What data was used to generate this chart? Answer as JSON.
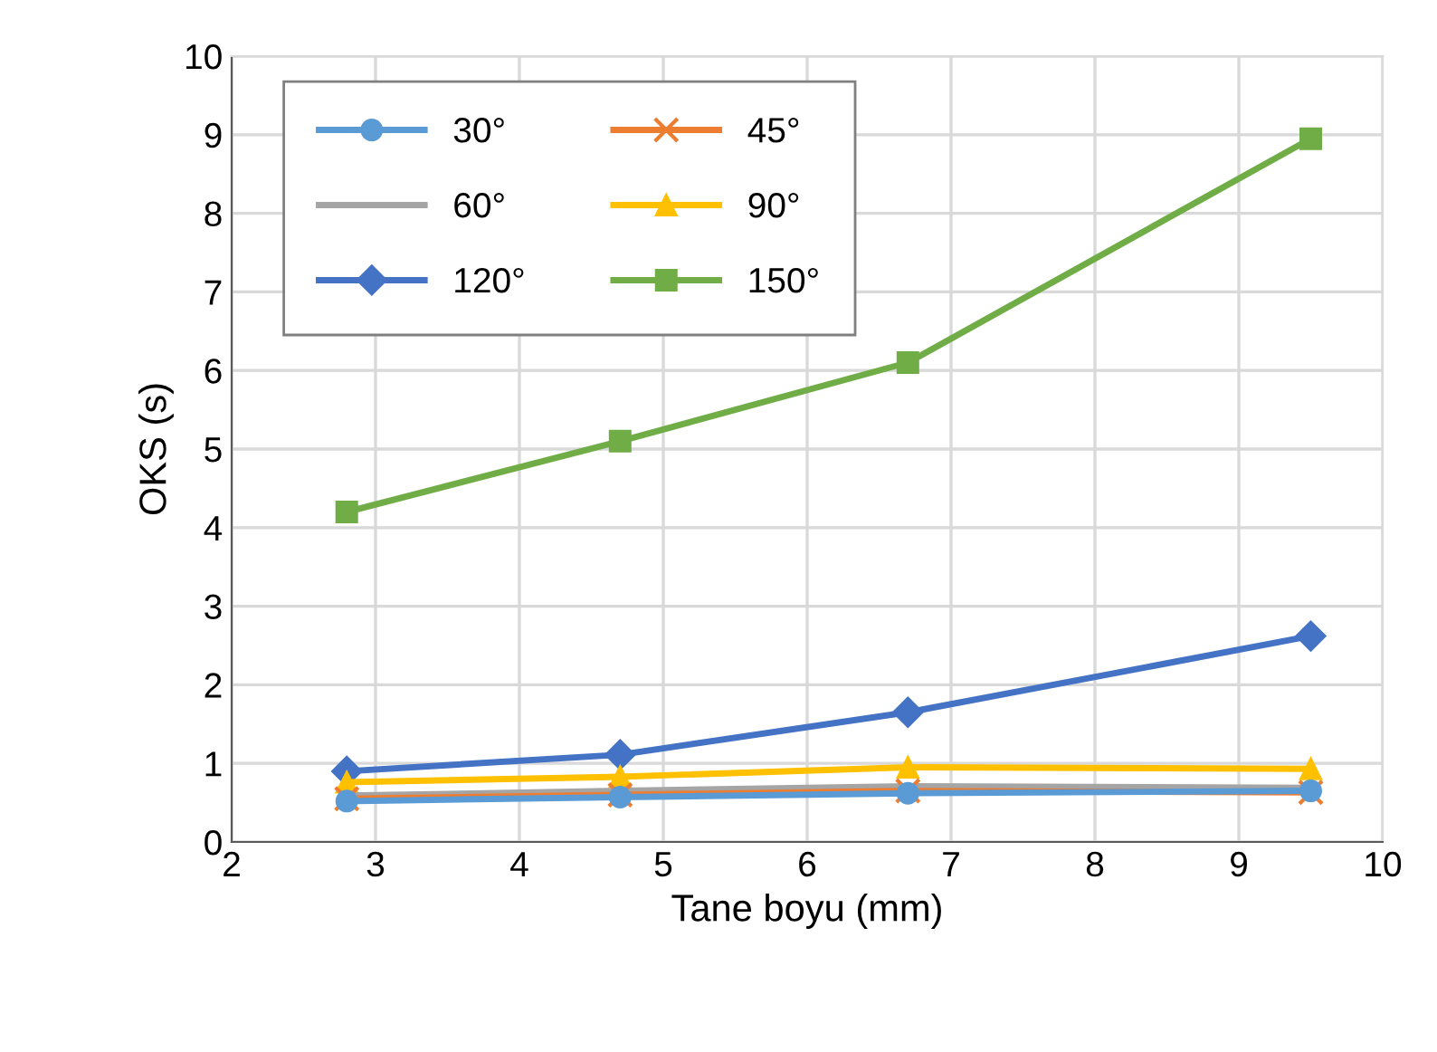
{
  "chart_data": {
    "type": "line",
    "xlabel": "Tane boyu (mm)",
    "ylabel": "OKS (s)",
    "x": [
      2.8,
      4.7,
      6.7,
      9.5
    ],
    "xlim": [
      2,
      10
    ],
    "xticks": [
      2,
      3,
      4,
      5,
      6,
      7,
      8,
      9,
      10
    ],
    "ylim": [
      0,
      10
    ],
    "yticks": [
      0,
      1,
      2,
      3,
      4,
      5,
      6,
      7,
      8,
      9,
      10
    ],
    "grid": true,
    "legend": "top left",
    "series": [
      {
        "name": "30°",
        "color": "#5b9bd5",
        "marker": "circle",
        "values": [
          0.52,
          0.57,
          0.62,
          0.65
        ]
      },
      {
        "name": "45°",
        "color": "#ed7d31",
        "marker": "cross",
        "values": [
          0.55,
          0.6,
          0.65,
          0.63
        ]
      },
      {
        "name": "60°",
        "color": "#a5a5a5",
        "marker": "none",
        "values": [
          0.59,
          0.65,
          0.71,
          0.69
        ]
      },
      {
        "name": "90°",
        "color": "#ffc000",
        "marker": "triangle",
        "values": [
          0.76,
          0.83,
          0.95,
          0.93
        ]
      },
      {
        "name": "120°",
        "color": "#4472c4",
        "marker": "diamond",
        "values": [
          0.9,
          1.11,
          1.65,
          2.62
        ]
      },
      {
        "name": "150°",
        "color": "#70ad47",
        "marker": "square",
        "values": [
          4.2,
          5.1,
          6.1,
          8.95
        ]
      }
    ]
  }
}
